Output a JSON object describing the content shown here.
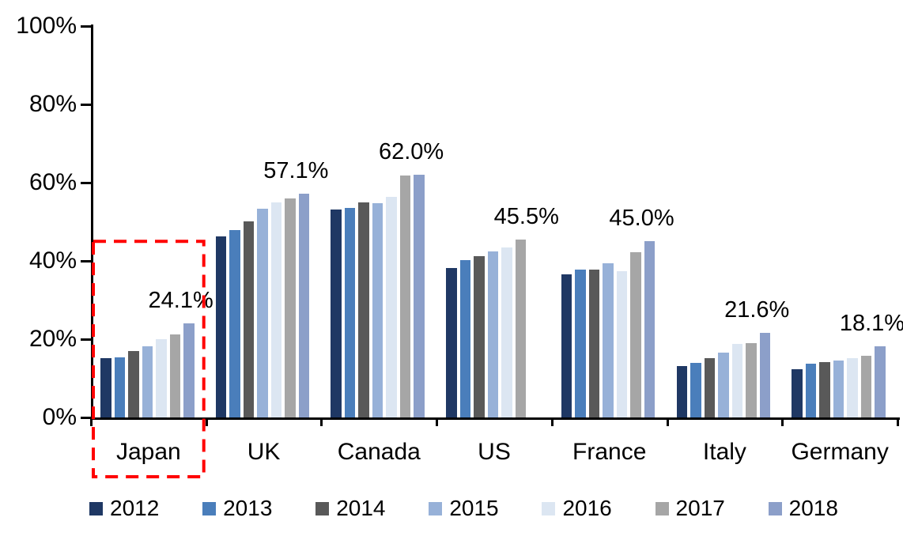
{
  "chart_data": {
    "type": "bar",
    "title": "",
    "categories": [
      "Japan",
      "UK",
      "Canada",
      "US",
      "France",
      "Italy",
      "Germany"
    ],
    "series": [
      {
        "name": "2012",
        "color": "#1F3864",
        "values": [
          15.1,
          46.3,
          53.1,
          38.2,
          36.5,
          13.1,
          12.3
        ]
      },
      {
        "name": "2013",
        "color": "#4A7EBB",
        "values": [
          15.3,
          47.9,
          53.5,
          40.2,
          37.8,
          13.9,
          13.8
        ]
      },
      {
        "name": "2014",
        "color": "#595959",
        "values": [
          16.9,
          50.1,
          55.0,
          41.2,
          37.8,
          15.2,
          14.1
        ]
      },
      {
        "name": "2015",
        "color": "#97B1D8",
        "values": [
          18.2,
          53.4,
          54.7,
          42.4,
          39.3,
          16.6,
          14.5
        ]
      },
      {
        "name": "2016",
        "color": "#DCE6F2",
        "values": [
          20.0,
          54.9,
          56.3,
          43.5,
          37.3,
          18.7,
          15.2
        ]
      },
      {
        "name": "2017",
        "color": "#A6A6A6",
        "values": [
          21.3,
          56.0,
          61.8,
          45.5,
          42.3,
          18.9,
          15.7
        ]
      },
      {
        "name": "2018",
        "color": "#8C9FC9",
        "values": [
          24.1,
          57.1,
          62.0,
          null,
          45.0,
          21.6,
          18.1
        ]
      }
    ],
    "value_labels": [
      "24.1%",
      "57.1%",
      "62.0%",
      "45.5%",
      "45.0%",
      "21.6%",
      "18.1%"
    ],
    "ylim": [
      0,
      100
    ],
    "yticks": [
      {
        "value": 100,
        "label": "100%"
      },
      {
        "value": 80,
        "label": "80%"
      },
      {
        "value": 60,
        "label": "60%"
      },
      {
        "value": 40,
        "label": "40%"
      },
      {
        "value": 20,
        "label": "20%"
      },
      {
        "value": 0,
        "label": "0%"
      }
    ],
    "grid": false,
    "legend_position": "bottom",
    "legend_labels": [
      "2012",
      "2013",
      "2014",
      "2015",
      "2016",
      "2017",
      "2018"
    ],
    "highlight": {
      "category": "Japan",
      "style": "dashed-box",
      "color": "#FF0000"
    }
  }
}
